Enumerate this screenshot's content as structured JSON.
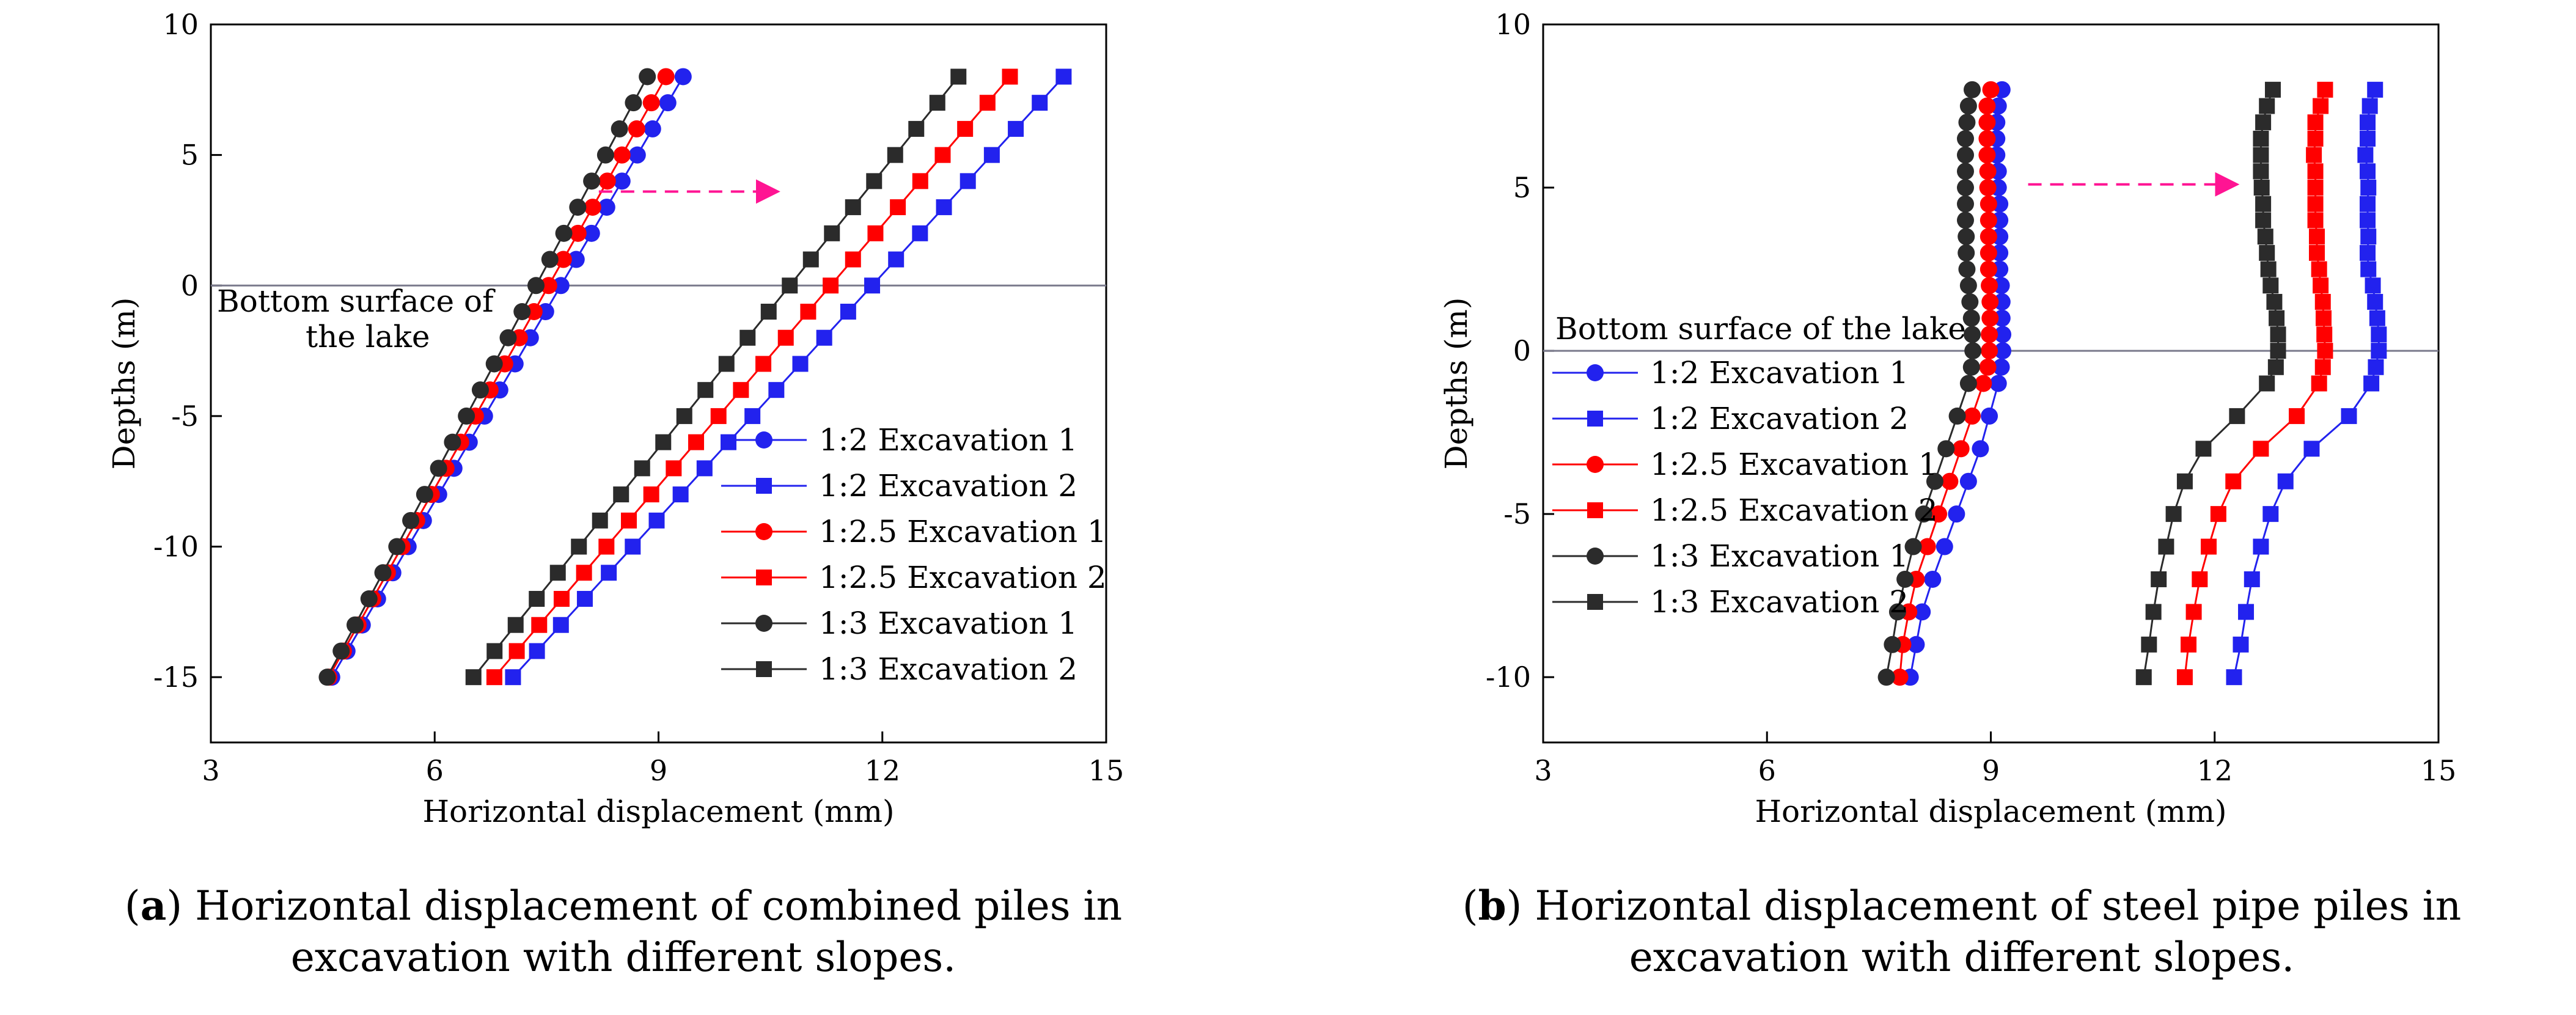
{
  "figure_captions": [
    {
      "label": "a",
      "text": "Horizontal displacement of combined piles in excavation with different slopes."
    },
    {
      "label": "b",
      "text": "Horizontal displacement of steel pipe piles in excavation with different slopes."
    }
  ],
  "colors": {
    "slope_1_2": "#2222ee",
    "slope_1_2_5": "#ff0000",
    "slope_1_3": "#2b2b2b",
    "arrow": "#ff1493",
    "reference_line": "#7a7a8c",
    "axis": "#000000"
  },
  "chart_data": [
    {
      "type": "line",
      "panel": "a",
      "xlabel": "Horizontal displacement (mm)",
      "ylabel": "Depths (m)",
      "xlim": [
        3,
        15
      ],
      "ylim": [
        -17.5,
        10
      ],
      "xticks": [
        3,
        6,
        9,
        12,
        15
      ],
      "yticks": [
        -15,
        -10,
        -5,
        0,
        5,
        10
      ],
      "grid": false,
      "legend_position": "bottom-right",
      "reference_line": {
        "y": 0,
        "label": "Bottom surface of the lake",
        "label_lines": [
          "Bottom surface of",
          "the lake"
        ]
      },
      "annotation_arrow": {
        "from": [
          8.2,
          3.6
        ],
        "to": [
          10.6,
          3.6
        ]
      },
      "series": [
        {
          "name": "1:2 Excavation 1",
          "marker": "circle",
          "color_key": "slope_1_2",
          "x": [
            4.62,
            9.33
          ],
          "depth": [
            -15,
            8
          ]
        },
        {
          "name": "1:2 Excavation 2",
          "marker": "square",
          "color_key": "slope_1_2",
          "x": [
            7.05,
            14.43
          ],
          "depth": [
            -15,
            8
          ]
        },
        {
          "name": "1:2.5 Excavation 1",
          "marker": "circle",
          "color_key": "slope_1_2_5",
          "x": [
            4.58,
            9.1
          ],
          "depth": [
            -15,
            8
          ]
        },
        {
          "name": "1:2.5 Excavation 2",
          "marker": "square",
          "color_key": "slope_1_2_5",
          "x": [
            6.8,
            13.71
          ],
          "depth": [
            -15,
            8
          ]
        },
        {
          "name": "1:3 Excavation 1",
          "marker": "circle",
          "color_key": "slope_1_3",
          "x": [
            4.56,
            8.85
          ],
          "depth": [
            -15,
            8
          ]
        },
        {
          "name": "1:3 Excavation 2",
          "marker": "square",
          "color_key": "slope_1_3",
          "x": [
            6.52,
            13.02
          ],
          "depth": [
            -15,
            8
          ]
        }
      ]
    },
    {
      "type": "line",
      "panel": "b",
      "xlabel": "Horizontal displacement (mm)",
      "ylabel": "Depths (m)",
      "xlim": [
        3,
        15
      ],
      "ylim": [
        -12,
        10
      ],
      "xticks": [
        3,
        6,
        9,
        12,
        15
      ],
      "yticks": [
        -10,
        -5,
        0,
        5,
        10
      ],
      "grid": false,
      "legend_position": "middle-left",
      "reference_line": {
        "y": 0,
        "label": "Bottom surface of the lake",
        "label_lines": [
          "Bottom surface of the lake"
        ]
      },
      "annotation_arrow": {
        "from": [
          9.5,
          5.1
        ],
        "to": [
          12.3,
          5.1
        ]
      },
      "depths": [
        8,
        7.5,
        7,
        6.5,
        6,
        5.5,
        5,
        4.5,
        4,
        3.5,
        3,
        2.5,
        2,
        1.5,
        1,
        0.5,
        0,
        -0.5,
        -1,
        -2,
        -3,
        -4,
        -5,
        -6,
        -7,
        -8,
        -9,
        -10
      ],
      "series": [
        {
          "name": "1:2 Excavation 1",
          "marker": "circle",
          "color_key": "slope_1_2",
          "x": [
            9.15,
            9.1,
            9.08,
            9.08,
            9.08,
            9.1,
            9.1,
            9.12,
            9.12,
            9.12,
            9.12,
            9.12,
            9.14,
            9.15,
            9.15,
            9.16,
            9.16,
            9.14,
            9.1,
            8.98,
            8.86,
            8.7,
            8.54,
            8.38,
            8.22,
            8.08,
            8.0,
            7.92
          ]
        },
        {
          "name": "1:2 Excavation 2",
          "marker": "square",
          "color_key": "slope_1_2",
          "x": [
            14.15,
            14.08,
            14.05,
            14.05,
            14.02,
            14.05,
            14.06,
            14.05,
            14.05,
            14.06,
            14.05,
            14.06,
            14.12,
            14.15,
            14.18,
            14.2,
            14.2,
            14.16,
            14.1,
            13.8,
            13.3,
            12.95,
            12.75,
            12.62,
            12.5,
            12.42,
            12.35,
            12.26
          ]
        },
        {
          "name": "1:2.5 Excavation 1",
          "marker": "circle",
          "color_key": "slope_1_2_5",
          "x": [
            9.0,
            8.95,
            8.95,
            8.95,
            8.95,
            8.96,
            8.96,
            8.97,
            8.97,
            8.97,
            8.97,
            8.97,
            8.98,
            8.99,
            8.99,
            8.98,
            8.98,
            8.96,
            8.9,
            8.75,
            8.6,
            8.45,
            8.3,
            8.15,
            8.0,
            7.9,
            7.82,
            7.78
          ]
        },
        {
          "name": "1:2.5 Excavation 2",
          "marker": "square",
          "color_key": "slope_1_2_5",
          "x": [
            13.48,
            13.42,
            13.35,
            13.35,
            13.33,
            13.35,
            13.35,
            13.35,
            13.35,
            13.37,
            13.37,
            13.4,
            13.42,
            13.45,
            13.46,
            13.47,
            13.48,
            13.45,
            13.4,
            13.1,
            12.62,
            12.25,
            12.05,
            11.92,
            11.8,
            11.72,
            11.65,
            11.6
          ]
        },
        {
          "name": "1:3 Excavation 1",
          "marker": "circle",
          "color_key": "slope_1_3",
          "x": [
            8.75,
            8.7,
            8.68,
            8.66,
            8.66,
            8.66,
            8.66,
            8.66,
            8.66,
            8.67,
            8.67,
            8.68,
            8.7,
            8.72,
            8.74,
            8.75,
            8.76,
            8.74,
            8.7,
            8.55,
            8.4,
            8.25,
            8.1,
            7.96,
            7.85,
            7.75,
            7.68,
            7.6
          ]
        },
        {
          "name": "1:3 Excavation 2",
          "marker": "square",
          "color_key": "slope_1_3",
          "x": [
            12.78,
            12.7,
            12.65,
            12.62,
            12.62,
            12.62,
            12.63,
            12.65,
            12.65,
            12.68,
            12.7,
            12.72,
            12.75,
            12.8,
            12.83,
            12.85,
            12.85,
            12.82,
            12.7,
            12.3,
            11.85,
            11.6,
            11.45,
            11.35,
            11.25,
            11.18,
            11.12,
            11.05
          ]
        }
      ]
    }
  ]
}
